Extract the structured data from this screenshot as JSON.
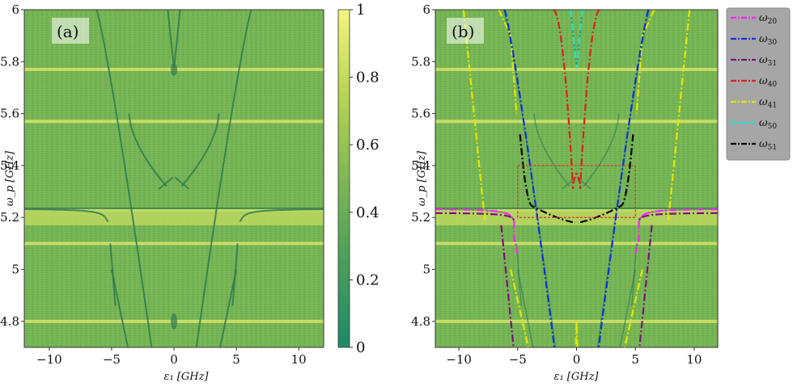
{
  "chart_data": [
    {
      "type": "heatmap",
      "panel_label": "(a)",
      "xlabel": "ε₁ [GHz]",
      "ylabel": "ω_p [GHz]",
      "xlim": [
        -12,
        12
      ],
      "ylim": [
        4.7,
        6.0
      ],
      "x_ticks": [
        -10,
        -5,
        0,
        5,
        10
      ],
      "x_tick_labels": [
        "−10",
        "−5",
        "0",
        "5",
        "10"
      ],
      "y_ticks": [
        4.8,
        5.0,
        5.2,
        5.4,
        5.6,
        5.8,
        6.0
      ],
      "y_tick_labels": [
        "4.8",
        "5",
        "5.2",
        "5.4",
        "5.6",
        "5.8",
        "6"
      ],
      "colorbar": {
        "min": 0,
        "max": 1,
        "ticks": [
          0,
          0.2,
          0.4,
          0.6,
          0.8,
          1
        ],
        "tick_labels": [
          "0",
          "0.2",
          "0.4",
          "0.6",
          "0.8",
          "1"
        ],
        "colors": [
          "#1c8a68",
          "#4a9e5a",
          "#7fb854",
          "#b8d552",
          "#f2f27a"
        ]
      },
      "background_level": 0.55,
      "bright_bands": [
        4.8,
        5.1,
        5.23,
        5.57,
        5.77
      ]
    },
    {
      "type": "heatmap",
      "panel_label": "(b)",
      "xlabel": "ε₁ [GHz]",
      "ylabel": "ω_p [GHz]",
      "xlim": [
        -12,
        12
      ],
      "ylim": [
        4.7,
        6.0
      ],
      "x_ticks": [
        -10,
        -5,
        0,
        5,
        10
      ],
      "x_tick_labels": [
        "−10",
        "−5",
        "0",
        "5",
        "10"
      ],
      "y_ticks": [
        4.8,
        5.0,
        5.2,
        5.4,
        5.6,
        5.8,
        6.0
      ],
      "y_tick_labels": [
        "4.8",
        "5",
        "5.2",
        "5.4",
        "5.6",
        "5.8",
        "6"
      ],
      "highlight_box": {
        "x": [
          -5,
          5
        ],
        "y": [
          5.2,
          5.4
        ],
        "color": "#e03030"
      },
      "series": [
        {
          "name": "ω20",
          "label": "ω",
          "sub": "20",
          "color": "#ff22ff"
        },
        {
          "name": "ω30",
          "label": "ω",
          "sub": "30",
          "color": "#1030e0"
        },
        {
          "name": "ω31",
          "label": "ω",
          "sub": "31",
          "color": "#7a1080"
        },
        {
          "name": "ω40",
          "label": "ω",
          "sub": "40",
          "color": "#e02020"
        },
        {
          "name": "ω41",
          "label": "ω",
          "sub": "41",
          "color": "#e6e600"
        },
        {
          "name": "ω50",
          "label": "ω",
          "sub": "50",
          "color": "#20e0d0"
        },
        {
          "name": "ω51",
          "label": "ω",
          "sub": "51",
          "color": "#000000"
        }
      ]
    }
  ]
}
